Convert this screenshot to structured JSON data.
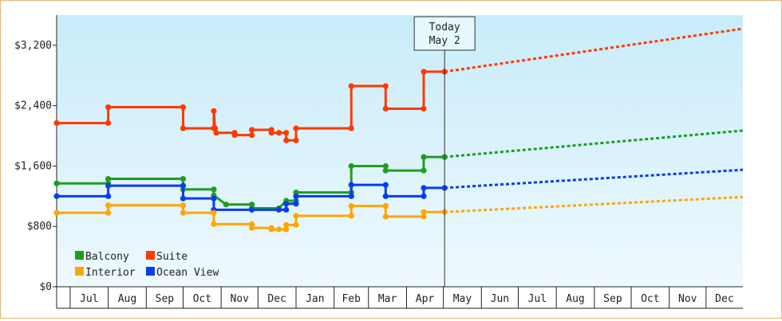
{
  "colors": {
    "Balcony": "#1e9e1e",
    "Suite": "#ff3a00",
    "Interior": "#ffa500",
    "Ocean View": "#0a3cf0",
    "plot_bg_top": "#c8ecfa",
    "plot_bg_bottom": "#eef9fe",
    "frame_border": "#e8b878"
  },
  "chart_data": {
    "type": "line",
    "title": "",
    "xlabel": "",
    "ylabel": "",
    "ylim": [
      0,
      3600
    ],
    "grid": false,
    "legend_position": "bottom-left",
    "y_ticks": [
      "$0",
      "$800",
      "$1,600",
      "$2,400",
      "$3,200"
    ],
    "y_tick_values": [
      0,
      800,
      1600,
      2400,
      3200
    ],
    "x_tick_labels": [
      "Jul",
      "Aug",
      "Sep",
      "Oct",
      "Nov",
      "Dec",
      "Jan",
      "Feb",
      "Mar",
      "Apr",
      "May",
      "Jun",
      "Jul",
      "Aug",
      "Sep",
      "Oct",
      "Nov",
      "Dec"
    ],
    "today_marker": {
      "line1": "Today",
      "line2": "May 2",
      "date": "May 2"
    },
    "x_start": "Jun 20",
    "x_end": "Dec 31",
    "series": [
      {
        "name": "Suite",
        "history": [
          [
            "Jun 20",
            2170
          ],
          [
            "Aug 1",
            2170
          ],
          [
            "Aug 1",
            2380
          ],
          [
            "Oct 1",
            2380
          ],
          [
            "Oct 1",
            2100
          ],
          [
            "Oct 26",
            2100
          ],
          [
            "Oct 26",
            2330
          ],
          [
            "Oct 27",
            2100
          ],
          [
            "Oct 28",
            2040
          ],
          [
            "Nov 12",
            2040
          ],
          [
            "Nov 12",
            2010
          ],
          [
            "Nov 26",
            2010
          ],
          [
            "Nov 26",
            2080
          ],
          [
            "Dec 12",
            2080
          ],
          [
            "Dec 12",
            2040
          ],
          [
            "Dec 18",
            2040
          ],
          [
            "Dec 24",
            2040
          ],
          [
            "Dec 24",
            1940
          ],
          [
            "Jan 1",
            1940
          ],
          [
            "Jan 1",
            2100
          ],
          [
            "Feb 15",
            2100
          ],
          [
            "Feb 15",
            2660
          ],
          [
            "Mar 15",
            2660
          ],
          [
            "Mar 15",
            2360
          ],
          [
            "Apr 15",
            2360
          ],
          [
            "Apr 15",
            2850
          ],
          [
            "May 2",
            2850
          ]
        ],
        "forecast": [
          [
            "May 2",
            2850
          ],
          [
            "Dec 31",
            3420
          ]
        ]
      },
      {
        "name": "Balcony",
        "history": [
          [
            "Jun 20",
            1370
          ],
          [
            "Aug 1",
            1370
          ],
          [
            "Aug 1",
            1430
          ],
          [
            "Oct 1",
            1430
          ],
          [
            "Oct 1",
            1290
          ],
          [
            "Oct 26",
            1290
          ],
          [
            "Oct 26",
            1210
          ],
          [
            "Nov 5",
            1090
          ],
          [
            "Nov 26",
            1090
          ],
          [
            "Nov 26",
            1040
          ],
          [
            "Dec 18",
            1040
          ],
          [
            "Dec 24",
            1140
          ],
          [
            "Jan 1",
            1140
          ],
          [
            "Jan 1",
            1250
          ],
          [
            "Feb 15",
            1250
          ],
          [
            "Feb 15",
            1600
          ],
          [
            "Mar 15",
            1600
          ],
          [
            "Mar 15",
            1540
          ],
          [
            "Apr 15",
            1540
          ],
          [
            "Apr 15",
            1720
          ],
          [
            "May 2",
            1720
          ]
        ],
        "forecast": [
          [
            "May 2",
            1720
          ],
          [
            "Dec 31",
            2070
          ]
        ]
      },
      {
        "name": "Ocean View",
        "history": [
          [
            "Jun 20",
            1200
          ],
          [
            "Aug 1",
            1200
          ],
          [
            "Aug 1",
            1340
          ],
          [
            "Oct 1",
            1340
          ],
          [
            "Oct 1",
            1170
          ],
          [
            "Oct 26",
            1170
          ],
          [
            "Oct 26",
            1020
          ],
          [
            "Nov 26",
            1020
          ],
          [
            "Dec 18",
            1020
          ],
          [
            "Dec 24",
            1020
          ],
          [
            "Dec 24",
            1100
          ],
          [
            "Jan 1",
            1100
          ],
          [
            "Jan 1",
            1200
          ],
          [
            "Feb 15",
            1200
          ],
          [
            "Feb 15",
            1350
          ],
          [
            "Mar 15",
            1350
          ],
          [
            "Mar 15",
            1200
          ],
          [
            "Apr 15",
            1200
          ],
          [
            "Apr 15",
            1310
          ],
          [
            "May 2",
            1310
          ]
        ],
        "forecast": [
          [
            "May 2",
            1310
          ],
          [
            "Dec 31",
            1550
          ]
        ]
      },
      {
        "name": "Interior",
        "history": [
          [
            "Jun 20",
            980
          ],
          [
            "Aug 1",
            980
          ],
          [
            "Aug 1",
            1080
          ],
          [
            "Oct 1",
            1080
          ],
          [
            "Oct 1",
            980
          ],
          [
            "Oct 26",
            980
          ],
          [
            "Oct 26",
            830
          ],
          [
            "Nov 26",
            830
          ],
          [
            "Nov 26",
            780
          ],
          [
            "Dec 12",
            780
          ],
          [
            "Dec 12",
            760
          ],
          [
            "Dec 18",
            760
          ],
          [
            "Dec 24",
            760
          ],
          [
            "Dec 24",
            820
          ],
          [
            "Jan 1",
            820
          ],
          [
            "Jan 1",
            940
          ],
          [
            "Feb 15",
            940
          ],
          [
            "Feb 15",
            1070
          ],
          [
            "Mar 15",
            1070
          ],
          [
            "Mar 15",
            930
          ],
          [
            "Apr 15",
            930
          ],
          [
            "Apr 15",
            990
          ],
          [
            "May 2",
            990
          ]
        ],
        "forecast": [
          [
            "May 2",
            990
          ],
          [
            "Dec 31",
            1190
          ]
        ]
      }
    ],
    "legend": [
      "Balcony",
      "Suite",
      "Interior",
      "Ocean View"
    ]
  }
}
